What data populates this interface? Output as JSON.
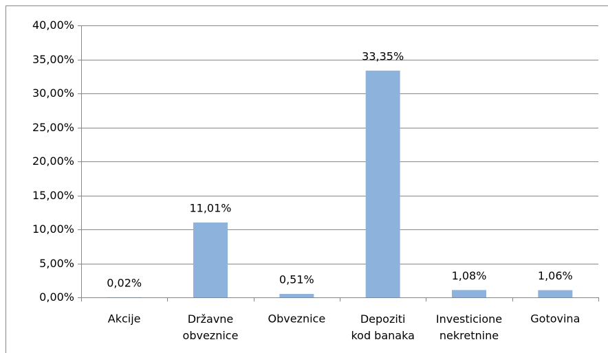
{
  "chart_data": {
    "type": "bar",
    "categories": [
      "Akcije",
      "Državne obveznice",
      "Obveznice",
      "Depoziti kod banaka",
      "Investicione nekretnine",
      "Gotovina"
    ],
    "values": [
      0.02,
      11.01,
      0.51,
      33.35,
      1.08,
      1.06
    ],
    "value_labels": [
      "0,02%",
      "11,01%",
      "0,51%",
      "33,35%",
      "1,08%",
      "1,06%"
    ],
    "color": "#8db3dc",
    "ylim": [
      0,
      40
    ],
    "yticks": [
      {
        "value": 0,
        "label": "0,00%"
      },
      {
        "value": 5,
        "label": "5,00%"
      },
      {
        "value": 10,
        "label": "10,00%"
      },
      {
        "value": 15,
        "label": "15,00%"
      },
      {
        "value": 20,
        "label": "20,00%"
      },
      {
        "value": 25,
        "label": "25,00%"
      },
      {
        "value": 30,
        "label": "30,00%"
      },
      {
        "value": 35,
        "label": "35,00%"
      },
      {
        "value": 40,
        "label": "40,00%"
      }
    ],
    "grid": true
  }
}
